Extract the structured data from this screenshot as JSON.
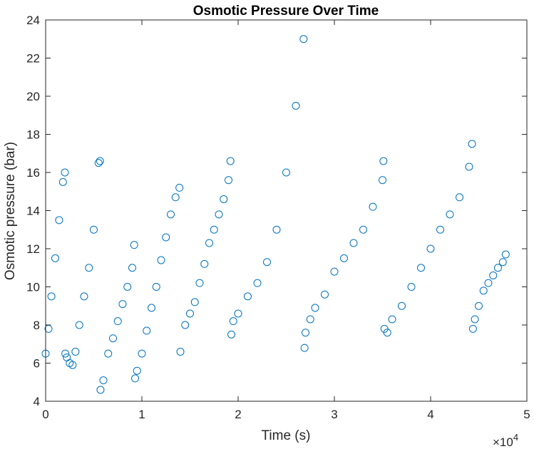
{
  "chart_data": {
    "type": "scatter",
    "title": "Osmotic Pressure Over Time",
    "xlabel": "Time (s)",
    "ylabel": "Osmotic pressure (bar)",
    "x_multiplier_label": "×10",
    "x_multiplier_exponent": "4",
    "xlim": [
      0,
      50000
    ],
    "ylim": [
      4,
      24
    ],
    "x_ticks": [
      0,
      10000,
      20000,
      30000,
      40000,
      50000
    ],
    "x_tick_labels": [
      "0",
      "1",
      "2",
      "3",
      "4",
      "5"
    ],
    "y_ticks": [
      4,
      6,
      8,
      10,
      12,
      14,
      16,
      18,
      20,
      22,
      24
    ],
    "y_tick_labels": [
      "4",
      "6",
      "8",
      "10",
      "12",
      "14",
      "16",
      "18",
      "20",
      "22",
      "24"
    ],
    "grid": false,
    "marker": "open-circle",
    "marker_color": "#0072bd",
    "series": [
      {
        "x": [
          0,
          300,
          600,
          1000,
          1400,
          1800,
          2000,
          2050,
          2200,
          2500,
          2800,
          3100,
          3500,
          4000,
          4500,
          5000,
          5500,
          5650,
          5700,
          6000,
          6500,
          7000,
          7500,
          8000,
          8500,
          9000,
          9200,
          9300,
          9500,
          10000,
          10500,
          11000,
          11500,
          12000,
          12500,
          13000,
          13500,
          13900,
          14000,
          14500,
          15000,
          15500,
          16000,
          16500,
          17000,
          17500,
          18000,
          18500,
          19000,
          19200,
          19300,
          19500,
          20000,
          21000,
          22000,
          23000,
          24000,
          25000,
          26000,
          26800,
          26900,
          27000,
          27500,
          28000,
          29000,
          30000,
          31000,
          32000,
          33000,
          34000,
          35000,
          35100,
          35200,
          35500,
          36000,
          37000,
          38000,
          39000,
          40000,
          41000,
          42000,
          43000,
          44000,
          44300,
          44400,
          44600,
          45000,
          45500,
          46000,
          46500,
          47000,
          47500,
          47800
        ],
        "y": [
          6.5,
          7.8,
          9.5,
          11.5,
          13.5,
          15.5,
          16.0,
          6.5,
          6.3,
          6.0,
          5.9,
          6.6,
          8.0,
          9.5,
          11.0,
          13.0,
          16.5,
          16.6,
          4.6,
          5.1,
          6.5,
          7.3,
          8.2,
          9.1,
          10.0,
          11.0,
          12.2,
          5.2,
          5.6,
          6.5,
          7.7,
          8.9,
          10.0,
          11.4,
          12.6,
          13.8,
          14.7,
          15.2,
          6.6,
          8.0,
          8.6,
          9.2,
          10.2,
          11.2,
          12.3,
          13.0,
          13.8,
          14.6,
          15.6,
          16.6,
          7.5,
          8.2,
          8.6,
          9.5,
          10.2,
          11.3,
          13.0,
          16.0,
          19.5,
          23.0,
          6.8,
          7.6,
          8.3,
          8.9,
          9.6,
          10.8,
          11.5,
          12.3,
          13.0,
          14.2,
          15.6,
          16.6,
          7.8,
          7.6,
          8.3,
          9.0,
          10.0,
          11.0,
          12.0,
          13.0,
          13.8,
          14.7,
          16.3,
          17.5,
          7.8,
          8.3,
          9.0,
          9.8,
          10.2,
          10.6,
          11.0,
          11.3,
          11.7
        ]
      }
    ]
  }
}
